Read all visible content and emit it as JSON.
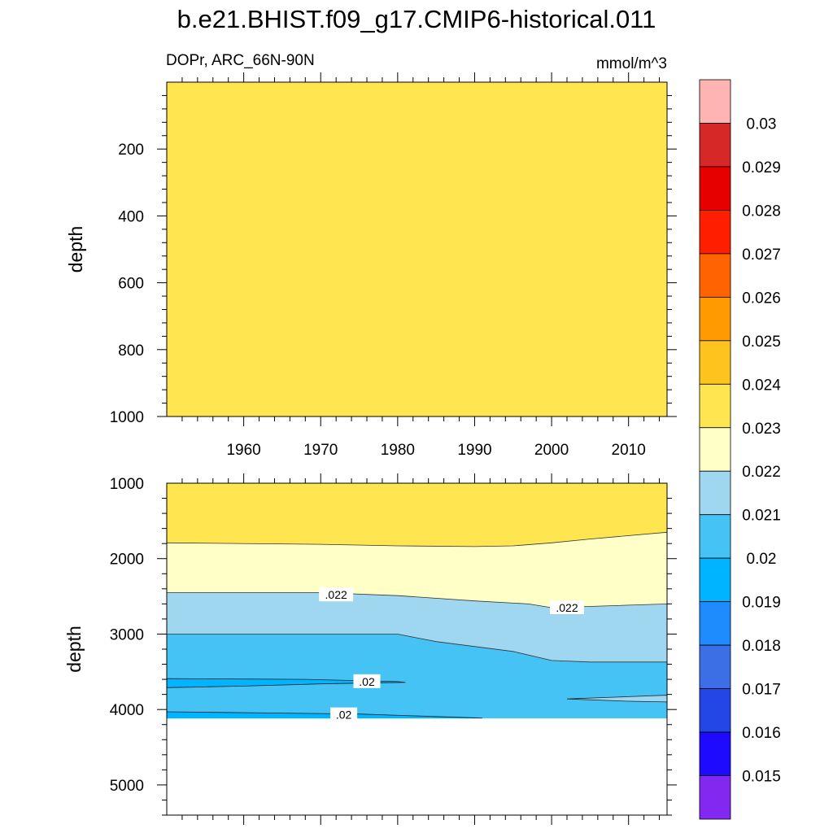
{
  "title": "b.e21.BHIST.f09_g17.CMIP6-historical.011",
  "subtitle_left": "DOPr, ARC_66N-90N",
  "subtitle_right": "mmol/m^3",
  "chart_data": [
    {
      "type": "heatmap",
      "panel": "upper",
      "ylabel": "depth",
      "xlabel": "",
      "x_range": [
        1950,
        2015
      ],
      "y_range": [
        0,
        1000
      ],
      "y_reversed": true,
      "x_ticks": [
        1960,
        1970,
        1980,
        1990,
        2000,
        2010
      ],
      "y_ticks": [
        200,
        400,
        600,
        800,
        1000
      ],
      "fill_band": "0.023-0.024",
      "contour_labels": []
    },
    {
      "type": "heatmap",
      "panel": "lower",
      "ylabel": "depth",
      "xlabel": "",
      "x_range": [
        1950,
        2015
      ],
      "y_range": [
        1000,
        5400
      ],
      "y_reversed": true,
      "y_ticks": [
        1000,
        2000,
        3000,
        4000,
        5000
      ],
      "ocean_bottom_depth": 4120,
      "bands": [
        {
          "range": "0.023-0.024",
          "top_depth": 1000,
          "bottom": [
            [
              1950,
              1790
            ],
            [
              1970,
              1810
            ],
            [
              1980,
              1830
            ],
            [
              1990,
              1840
            ],
            [
              1995,
              1830
            ],
            [
              2000,
              1790
            ],
            [
              2005,
              1740
            ],
            [
              2015,
              1650
            ]
          ]
        },
        {
          "range": "0.022-0.023",
          "bottom": [
            [
              1950,
              2450
            ],
            [
              1970,
              2450
            ],
            [
              1980,
              2490
            ],
            [
              1990,
              2560
            ],
            [
              1997,
              2600
            ],
            [
              2000,
              2650
            ],
            [
              2015,
              2600
            ]
          ]
        },
        {
          "range": "0.021-0.022",
          "bottom": [
            [
              1950,
              3000
            ],
            [
              1980,
              3000
            ],
            [
              1985,
              3100
            ],
            [
              1995,
              3230
            ],
            [
              2000,
              3350
            ],
            [
              2005,
              3370
            ],
            [
              2015,
              3370
            ]
          ]
        },
        {
          "range": "0.020-0.021",
          "bottom_depth": 4120
        }
      ],
      "contour_labels": [
        {
          "text": ".022",
          "x": 1972,
          "y": 2480
        },
        {
          "text": ".022",
          "x": 2002,
          "y": 2650
        },
        {
          "text": ".02",
          "x": 1976,
          "y": 3630
        },
        {
          "text": ".02",
          "x": 1973,
          "y": 4070
        }
      ]
    }
  ],
  "colorbar": {
    "colors": [
      "#ffb4b4",
      "#d72828",
      "#e60000",
      "#ff1e00",
      "#ff6400",
      "#ff9b00",
      "#ffc31e",
      "#ffe650",
      "#ffffc8",
      "#a0d7f0",
      "#46c3f5",
      "#00b4ff",
      "#1e8cff",
      "#3c6ee6",
      "#2346e6",
      "#1e0aff",
      "#8228f0"
    ],
    "labels": [
      "0.03",
      "0.029",
      "0.028",
      "0.027",
      "0.026",
      "0.025",
      "0.024",
      "0.023",
      "0.022",
      "0.021",
      "0.02",
      "0.019",
      "0.018",
      "0.017",
      "0.016",
      "0.015"
    ]
  }
}
